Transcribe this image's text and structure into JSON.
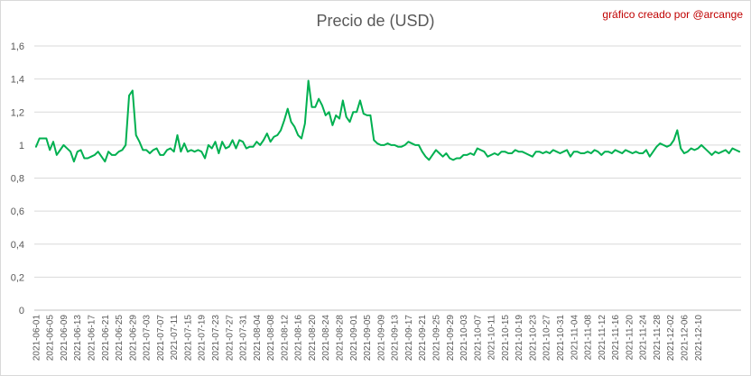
{
  "credit": {
    "text": "gráfico creado por @arcange",
    "color": "#c00000"
  },
  "chart_data": {
    "type": "line",
    "title": "Precio de (USD)",
    "xlabel": "",
    "ylabel": "",
    "ylim": [
      0,
      1.6
    ],
    "yticks": [
      0,
      0.2,
      0.4,
      0.6,
      0.8,
      1,
      1.2,
      1.4,
      1.6
    ],
    "ytick_labels": [
      "0",
      "0,2",
      "0,4",
      "0,6",
      "0,8",
      "1",
      "1,2",
      "1,4",
      "1,6"
    ],
    "grid": true,
    "legend": "none",
    "x_tick_labels": [
      "2021-06-01",
      "2021-06-05",
      "2021-06-09",
      "2021-06-13",
      "2021-06-17",
      "2021-06-21",
      "2021-06-25",
      "2021-06-29",
      "2021-07-03",
      "2021-07-07",
      "2021-07-11",
      "2021-07-15",
      "2021-07-19",
      "2021-07-23",
      "2021-07-27",
      "2021-07-31",
      "2021-08-04",
      "2021-08-08",
      "2021-08-12",
      "2021-08-16",
      "2021-08-20",
      "2021-08-24",
      "2021-08-28",
      "2021-09-01",
      "2021-09-05",
      "2021-09-09",
      "2021-09-13",
      "2021-09-17",
      "2021-09-21",
      "2021-09-25",
      "2021-09-29",
      "2021-10-03",
      "2021-10-07",
      "2021-10-11",
      "2021-10-15",
      "2021-10-19",
      "2021-10-23",
      "2021-10-27",
      "2021-10-31",
      "2021-11-04",
      "2021-11-08",
      "2021-11-12",
      "2021-11-16",
      "2021-11-20",
      "2021-11-24",
      "2021-11-28",
      "2021-12-02",
      "2021-12-06",
      "2021-12-10"
    ],
    "x": {
      "start": "2021-06-01",
      "step_days": 1
    },
    "series": [
      {
        "color": "#00b050",
        "values": [
          0.99,
          1.04,
          1.04,
          1.04,
          0.97,
          1.02,
          0.94,
          0.97,
          1.0,
          0.98,
          0.96,
          0.9,
          0.96,
          0.97,
          0.92,
          0.92,
          0.93,
          0.94,
          0.96,
          0.93,
          0.9,
          0.96,
          0.94,
          0.94,
          0.96,
          0.97,
          1.0,
          1.3,
          1.33,
          1.06,
          1.02,
          0.97,
          0.97,
          0.95,
          0.97,
          0.98,
          0.94,
          0.94,
          0.97,
          0.98,
          0.96,
          1.06,
          0.96,
          1.01,
          0.96,
          0.97,
          0.96,
          0.97,
          0.96,
          0.92,
          1.0,
          0.98,
          1.02,
          0.95,
          1.02,
          0.98,
          0.99,
          1.03,
          0.98,
          1.03,
          1.02,
          0.98,
          0.99,
          0.99,
          1.02,
          1.0,
          1.03,
          1.07,
          1.02,
          1.05,
          1.06,
          1.09,
          1.15,
          1.22,
          1.14,
          1.11,
          1.06,
          1.04,
          1.13,
          1.39,
          1.23,
          1.23,
          1.28,
          1.24,
          1.18,
          1.2,
          1.12,
          1.18,
          1.16,
          1.27,
          1.17,
          1.14,
          1.2,
          1.2,
          1.27,
          1.19,
          1.18,
          1.18,
          1.03,
          1.01,
          1.0,
          1.0,
          1.01,
          1.0,
          1.0,
          0.99,
          0.99,
          1.0,
          1.02,
          1.01,
          1.0,
          1.0,
          0.96,
          0.93,
          0.91,
          0.94,
          0.97,
          0.95,
          0.93,
          0.95,
          0.92,
          0.91,
          0.92,
          0.92,
          0.94,
          0.94,
          0.95,
          0.94,
          0.98,
          0.97,
          0.96,
          0.93,
          0.94,
          0.95,
          0.94,
          0.96,
          0.96,
          0.95,
          0.95,
          0.97,
          0.96,
          0.96,
          0.95,
          0.94,
          0.93,
          0.96,
          0.96,
          0.95,
          0.96,
          0.95,
          0.97,
          0.96,
          0.95,
          0.96,
          0.97,
          0.93,
          0.96,
          0.96,
          0.95,
          0.95,
          0.96,
          0.95,
          0.97,
          0.96,
          0.94,
          0.96,
          0.96,
          0.95,
          0.97,
          0.96,
          0.95,
          0.97,
          0.96,
          0.95,
          0.96,
          0.95,
          0.95,
          0.97,
          0.93,
          0.96,
          0.99,
          1.01,
          1.0,
          0.99,
          1.0,
          1.03,
          1.09,
          0.98,
          0.95,
          0.96,
          0.98,
          0.97,
          0.98,
          1.0,
          0.98,
          0.96,
          0.94,
          0.96,
          0.95,
          0.96,
          0.97,
          0.95,
          0.98,
          0.97,
          0.96
        ]
      }
    ]
  }
}
